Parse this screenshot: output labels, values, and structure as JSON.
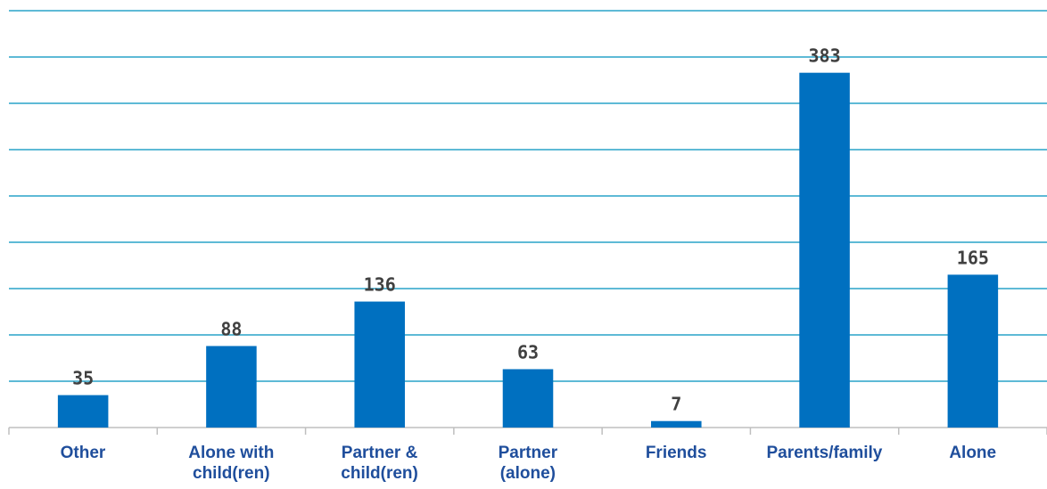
{
  "chart_data": {
    "type": "bar",
    "categories": [
      "Other",
      "Alone with\nchild(ren)",
      "Partner &\nchild(ren)",
      "Partner\n(alone)",
      "Friends",
      "Parents/family",
      "Alone"
    ],
    "values": [
      35,
      88,
      136,
      63,
      7,
      383,
      165
    ],
    "color": "#0070c0",
    "ylim": [
      0,
      450
    ],
    "yticks": [
      0,
      50,
      100,
      150,
      200,
      250,
      300,
      350,
      400,
      450
    ],
    "grid": true,
    "grid_color": "#29a3c9",
    "axis_color": "#bfbfbf"
  }
}
